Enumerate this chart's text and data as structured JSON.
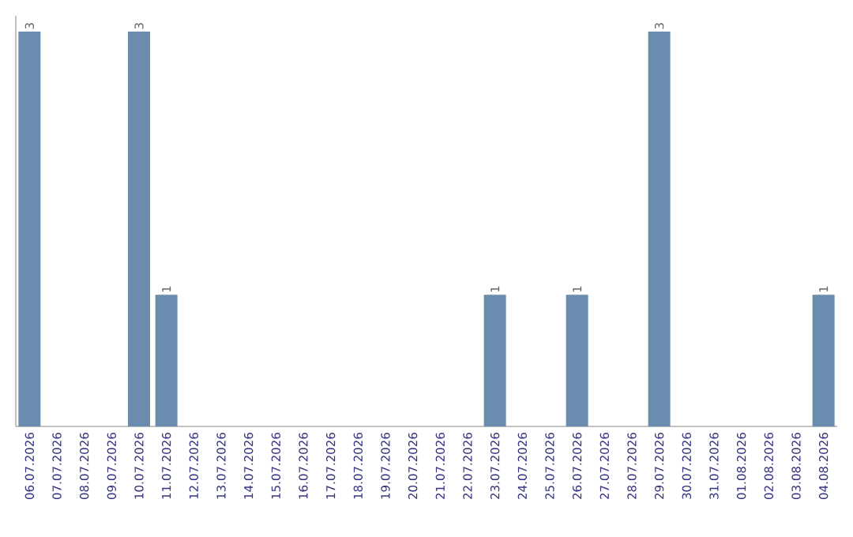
{
  "chart_data": {
    "type": "bar",
    "categories": [
      "06.07.2026",
      "07.07.2026",
      "08.07.2026",
      "09.07.2026",
      "10.07.2026",
      "11.07.2026",
      "12.07.2026",
      "13.07.2026",
      "14.07.2026",
      "15.07.2026",
      "16.07.2026",
      "17.07.2026",
      "18.07.2026",
      "19.07.2026",
      "20.07.2026",
      "21.07.2026",
      "22.07.2026",
      "23.07.2026",
      "24.07.2026",
      "25.07.2026",
      "26.07.2026",
      "27.07.2026",
      "28.07.2026",
      "29.07.2026",
      "30.07.2026",
      "31.07.2026",
      "01.08.2026",
      "02.08.2026",
      "03.08.2026",
      "04.08.2026"
    ],
    "values": [
      3,
      0,
      0,
      0,
      3,
      1,
      0,
      0,
      0,
      0,
      0,
      0,
      0,
      0,
      0,
      0,
      0,
      1,
      0,
      0,
      1,
      0,
      0,
      3,
      0,
      0,
      0,
      0,
      0,
      1
    ],
    "value_labels": [
      "3",
      null,
      null,
      null,
      "3",
      "1",
      null,
      null,
      null,
      null,
      null,
      null,
      null,
      null,
      null,
      null,
      null,
      "1",
      null,
      null,
      "1",
      null,
      null,
      "3",
      null,
      null,
      null,
      null,
      null,
      "1"
    ],
    "color": "#6a8caf"
  }
}
